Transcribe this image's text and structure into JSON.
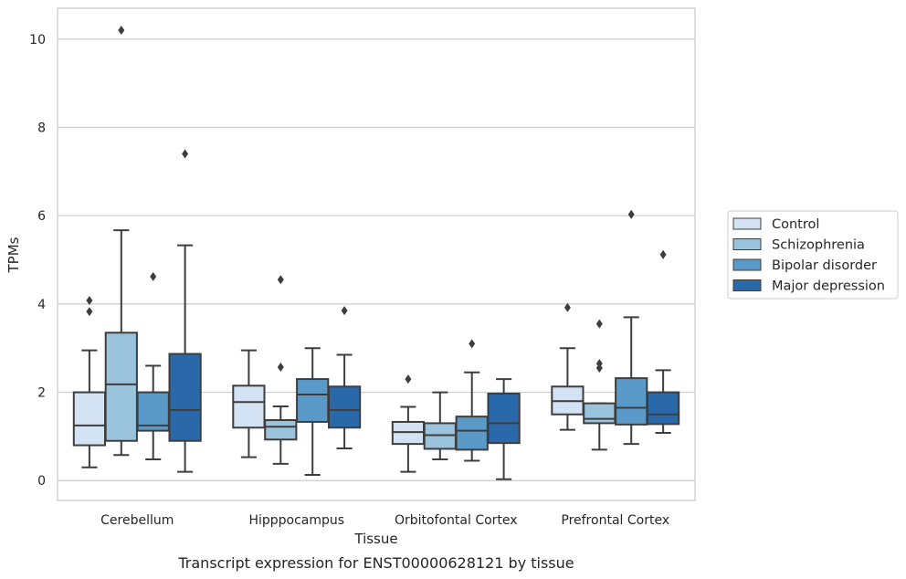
{
  "chart_data": {
    "type": "boxplot",
    "caption": "Transcript expression for ENST00000628121 by tissue",
    "xlabel": "Tissue",
    "ylabel": "TPMs",
    "ylim": [
      -0.45,
      10.7
    ],
    "yticks": [
      0,
      2,
      4,
      6,
      8,
      10
    ],
    "grid": "horizontal",
    "legend_position": "right",
    "categories": [
      "Cerebellum",
      "Hipppocampus",
      "Orbitofontal Cortex",
      "Prefrontal Cortex"
    ],
    "series": [
      {
        "name": "Control",
        "color": "#d4e3f3",
        "boxes": [
          {
            "whislo": 0.3,
            "q1": 0.8,
            "med": 1.25,
            "q3": 2.0,
            "whishi": 2.95,
            "fliers": [
              3.83,
              4.08
            ]
          },
          {
            "whislo": 0.53,
            "q1": 1.2,
            "med": 1.78,
            "q3": 2.15,
            "whishi": 2.95,
            "fliers": []
          },
          {
            "whislo": 0.2,
            "q1": 0.83,
            "med": 1.1,
            "q3": 1.33,
            "whishi": 1.67,
            "fliers": [
              2.3
            ]
          },
          {
            "whislo": 1.15,
            "q1": 1.5,
            "med": 1.8,
            "q3": 2.13,
            "whishi": 3.0,
            "fliers": [
              3.92
            ]
          }
        ]
      },
      {
        "name": "Schizophrenia",
        "color": "#9ac3dd",
        "boxes": [
          {
            "whislo": 0.58,
            "q1": 0.9,
            "med": 2.18,
            "q3": 3.35,
            "whishi": 5.67,
            "fliers": [
              10.2
            ]
          },
          {
            "whislo": 0.38,
            "q1": 0.93,
            "med": 1.22,
            "q3": 1.37,
            "whishi": 1.68,
            "fliers": [
              2.57,
              4.55
            ]
          },
          {
            "whislo": 0.48,
            "q1": 0.72,
            "med": 1.03,
            "q3": 1.3,
            "whishi": 2.0,
            "fliers": []
          },
          {
            "whislo": 0.7,
            "q1": 1.3,
            "med": 1.4,
            "q3": 1.75,
            "whishi": 1.75,
            "fliers": [
              2.55,
              2.65,
              3.55
            ]
          }
        ]
      },
      {
        "name": "Bipolar disorder",
        "color": "#5a9ac9",
        "boxes": [
          {
            "whislo": 0.48,
            "q1": 1.13,
            "med": 1.25,
            "q3": 2.0,
            "whishi": 2.6,
            "fliers": [
              4.62
            ]
          },
          {
            "whislo": 0.13,
            "q1": 1.33,
            "med": 1.95,
            "q3": 2.3,
            "whishi": 3.0,
            "fliers": []
          },
          {
            "whislo": 0.45,
            "q1": 0.7,
            "med": 1.13,
            "q3": 1.45,
            "whishi": 2.45,
            "fliers": [
              3.1
            ]
          },
          {
            "whislo": 0.83,
            "q1": 1.27,
            "med": 1.65,
            "q3": 2.32,
            "whishi": 3.7,
            "fliers": [
              6.03
            ]
          }
        ]
      },
      {
        "name": "Major depression",
        "color": "#2a69a9",
        "boxes": [
          {
            "whislo": 0.2,
            "q1": 0.9,
            "med": 1.6,
            "q3": 2.87,
            "whishi": 5.33,
            "fliers": [
              7.4
            ]
          },
          {
            "whislo": 0.73,
            "q1": 1.2,
            "med": 1.6,
            "q3": 2.13,
            "whishi": 2.85,
            "fliers": [
              3.85
            ]
          },
          {
            "whislo": 0.03,
            "q1": 0.85,
            "med": 1.3,
            "q3": 1.97,
            "whishi": 2.3,
            "fliers": []
          },
          {
            "whislo": 1.08,
            "q1": 1.28,
            "med": 1.5,
            "q3": 2.0,
            "whishi": 2.5,
            "fliers": [
              5.12
            ]
          }
        ]
      }
    ]
  }
}
